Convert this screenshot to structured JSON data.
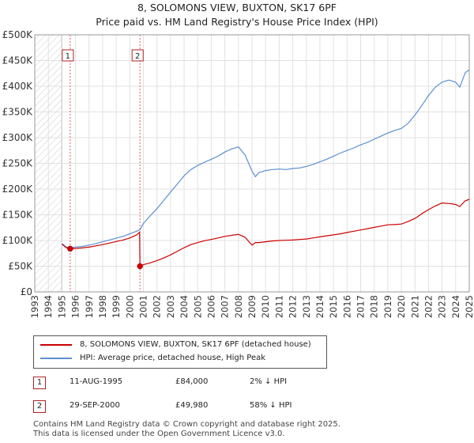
{
  "header": {
    "title_line1": "8, SOLOMONS VIEW, BUXTON, SK17 6PF",
    "title_line2": "Price paid vs. HM Land Registry's House Price Index (HPI)"
  },
  "chart_data": {
    "type": "line",
    "title": "8, SOLOMONS VIEW, BUXTON, SK17 6PF — Price paid vs. HM Land Registry's House Price Index (HPI)",
    "xlabel": "",
    "ylabel": "",
    "xlim": [
      1993,
      2025
    ],
    "ylim": [
      0,
      500000
    ],
    "y_ticks": [
      0,
      50000,
      100000,
      150000,
      200000,
      250000,
      300000,
      350000,
      400000,
      450000,
      500000
    ],
    "y_tick_labels": [
      "£0",
      "£50K",
      "£100K",
      "£150K",
      "£200K",
      "£250K",
      "£300K",
      "£350K",
      "£400K",
      "£450K",
      "£500K"
    ],
    "x_ticks": [
      1993,
      1994,
      1995,
      1996,
      1997,
      1998,
      1999,
      2000,
      2001,
      2002,
      2003,
      2004,
      2005,
      2006,
      2007,
      2008,
      2009,
      2010,
      2011,
      2012,
      2013,
      2014,
      2015,
      2016,
      2017,
      2018,
      2019,
      2020,
      2021,
      2022,
      2023,
      2024,
      2025
    ],
    "x_tick_labels": [
      "1993",
      "1994",
      "1995",
      "1996",
      "1997",
      "1998",
      "1999",
      "2000",
      "2001",
      "2002",
      "2003",
      "2004",
      "2005",
      "2006",
      "2007",
      "2008",
      "2009",
      "2010",
      "2011",
      "2012",
      "2013",
      "2014",
      "2015",
      "2016",
      "2017",
      "2018",
      "2019",
      "2020",
      "2021",
      "2022",
      "2023",
      "2024",
      "2025"
    ],
    "grid": true,
    "hatched_region": [
      1993,
      1995.0
    ],
    "series": [
      {
        "name": "8, SOLOMONS VIEW, BUXTON, SK17 6PF (detached house)",
        "color": "#cc0000",
        "x": [
          1995.0,
          1995.3,
          1995.61,
          1996.0,
          1996.5,
          1997.0,
          1997.5,
          1998.0,
          1998.5,
          1999.0,
          1999.5,
          2000.0,
          2000.5,
          2000.72,
          2000.75,
          2001.0,
          2001.5,
          2002.0,
          2002.5,
          2003.0,
          2003.5,
          2004.0,
          2004.5,
          2005.0,
          2005.5,
          2006.0,
          2006.5,
          2007.0,
          2007.5,
          2008.0,
          2008.5,
          2009.0,
          2009.25,
          2009.5,
          2010.0,
          2010.5,
          2011.0,
          2011.5,
          2012.0,
          2012.5,
          2013.0,
          2013.5,
          2014.0,
          2014.5,
          2015.0,
          2015.5,
          2016.0,
          2016.5,
          2017.0,
          2017.5,
          2018.0,
          2018.5,
          2019.0,
          2019.5,
          2020.0,
          2020.5,
          2021.0,
          2021.5,
          2022.0,
          2022.5,
          2023.0,
          2023.5,
          2024.0,
          2024.3,
          2024.7,
          2025.0
        ],
        "values": [
          93000,
          86000,
          84000,
          84500,
          85500,
          87000,
          89500,
          92000,
          95000,
          98000,
          101000,
          105000,
          111000,
          116000,
          49980,
          53000,
          56500,
          61000,
          66000,
          72000,
          79000,
          86000,
          92000,
          96000,
          99500,
          102000,
          105000,
          108000,
          110000,
          112000,
          106000,
          91000,
          96000,
          96000,
          97500,
          99000,
          100000,
          100500,
          101000,
          102000,
          103000,
          105000,
          107000,
          109000,
          111000,
          113000,
          115500,
          118000,
          120500,
          123000,
          125500,
          128000,
          130500,
          131000,
          132000,
          137000,
          143000,
          152000,
          160000,
          167000,
          173000,
          172000,
          170000,
          166000,
          177000,
          180000
        ]
      },
      {
        "name": "HPI: Average price, detached house, High Peak",
        "color": "#5b8fd0",
        "x": [
          1995.0,
          1995.3,
          1995.61,
          1996.0,
          1996.5,
          1997.0,
          1997.5,
          1998.0,
          1998.5,
          1999.0,
          1999.5,
          2000.0,
          2000.5,
          2000.75,
          2001.0,
          2001.5,
          2002.0,
          2002.5,
          2003.0,
          2003.5,
          2004.0,
          2004.5,
          2005.0,
          2005.5,
          2006.0,
          2006.5,
          2007.0,
          2007.5,
          2008.0,
          2008.5,
          2009.0,
          2009.25,
          2009.5,
          2010.0,
          2010.5,
          2011.0,
          2011.5,
          2012.0,
          2012.5,
          2013.0,
          2013.5,
          2014.0,
          2014.5,
          2015.0,
          2015.5,
          2016.0,
          2016.5,
          2017.0,
          2017.5,
          2018.0,
          2018.5,
          2019.0,
          2019.5,
          2020.0,
          2020.5,
          2021.0,
          2021.5,
          2022.0,
          2022.5,
          2023.0,
          2023.5,
          2024.0,
          2024.3,
          2024.7,
          2025.0
        ],
        "values": [
          94000,
          87500,
          86000,
          87000,
          88500,
          91000,
          94000,
          97500,
          101000,
          104500,
          108000,
          113000,
          118000,
          121000,
          133000,
          148000,
          162000,
          178000,
          194000,
          210000,
          226000,
          238000,
          246000,
          252000,
          258000,
          264000,
          272000,
          278000,
          282000,
          266000,
          235000,
          224000,
          232000,
          236000,
          238000,
          239000,
          238000,
          240000,
          241000,
          244000,
          248000,
          253000,
          258000,
          264000,
          270000,
          275000,
          280000,
          286000,
          291000,
          297000,
          303000,
          309000,
          314000,
          318000,
          328000,
          344000,
          362000,
          382000,
          398000,
          408000,
          412000,
          408000,
          398000,
          426000,
          432000
        ]
      }
    ],
    "sale_markers": [
      {
        "label": "1",
        "x": 1995.61,
        "value": 84000
      },
      {
        "label": "2",
        "x": 2000.75,
        "value": 49980
      }
    ]
  },
  "legend": {
    "items": [
      {
        "label": "8, SOLOMONS VIEW, BUXTON, SK17 6PF (detached house)",
        "color": "#cc0000"
      },
      {
        "label": "HPI: Average price, detached house, High Peak",
        "color": "#5b8fd0"
      }
    ]
  },
  "transactions": [
    {
      "badge": "1",
      "date": "11-AUG-1995",
      "price": "£84,000",
      "hpi": "2% ↓ HPI"
    },
    {
      "badge": "2",
      "date": "29-SEP-2000",
      "price": "£49,980",
      "hpi": "58% ↓ HPI"
    }
  ],
  "footer": {
    "line1": "Contains HM Land Registry data © Crown copyright and database right 2025.",
    "line2": "This data is licensed under the Open Government Licence v3.0."
  }
}
